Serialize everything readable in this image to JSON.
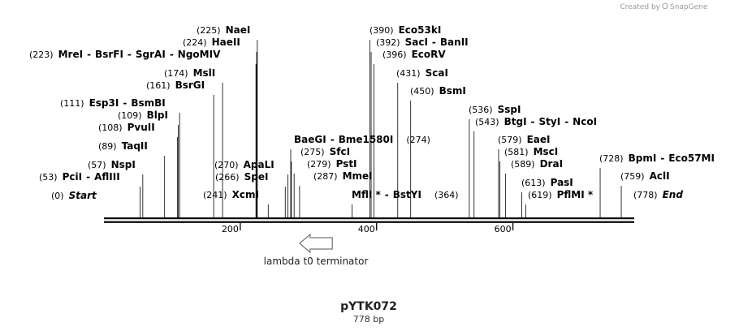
{
  "credit": {
    "prefix": "Created by",
    "brand": "SnapGene"
  },
  "title": "pYTK072",
  "length_label": "778 bp",
  "sequence_length": 778,
  "ticks": [
    {
      "label": "200",
      "value": 200
    },
    {
      "label": "400",
      "value": 400
    },
    {
      "label": "600",
      "value": 600
    }
  ],
  "feature": {
    "name": "lambda t0 terminator",
    "start": 287,
    "end": 335,
    "direction": "reverse"
  },
  "sites": [
    {
      "pos_label": "(0)",
      "names": [
        "Start"
      ],
      "site": 0,
      "italic": true
    },
    {
      "pos_label": "(53)",
      "names": [
        "PciI",
        "AflIII"
      ],
      "site": 53
    },
    {
      "pos_label": "(57)",
      "names": [
        "NspI"
      ],
      "site": 57
    },
    {
      "pos_label": "(89)",
      "names": [
        "TaqII"
      ],
      "site": 89
    },
    {
      "pos_label": "(108)",
      "names": [
        "PvuII"
      ],
      "site": 108
    },
    {
      "pos_label": "(109)",
      "names": [
        "BlpI"
      ],
      "site": 109
    },
    {
      "pos_label": "(111)",
      "names": [
        "Esp3I",
        "BsmBI"
      ],
      "site": 111
    },
    {
      "pos_label": "(161)",
      "names": [
        "BsrGI"
      ],
      "site": 161
    },
    {
      "pos_label": "(174)",
      "names": [
        "MslI"
      ],
      "site": 174
    },
    {
      "pos_label": "(223)",
      "names": [
        "MreI",
        "BsrFI",
        "SgrAI",
        "NgoMIV"
      ],
      "site": 223
    },
    {
      "pos_label": "(224)",
      "names": [
        "HaeII"
      ],
      "site": 224
    },
    {
      "pos_label": "(225)",
      "names": [
        "NaeI"
      ],
      "site": 225
    },
    {
      "pos_label": "(241)",
      "names": [
        "XcmI"
      ],
      "site": 241
    },
    {
      "pos_label": "(266)",
      "names": [
        "SpeI"
      ],
      "site": 266
    },
    {
      "pos_label": "(270)",
      "names": [
        "ApaLI"
      ],
      "site": 270
    },
    {
      "pos_label": "(274)",
      "names": [
        "BaeGI",
        "Bme1580I"
      ],
      "site": 274
    },
    {
      "pos_label": "(275)",
      "names": [
        "SfcI"
      ],
      "site": 275
    },
    {
      "pos_label": "(279)",
      "names": [
        "PstI"
      ],
      "site": 279
    },
    {
      "pos_label": "(287)",
      "names": [
        "MmeI"
      ],
      "site": 287
    },
    {
      "pos_label": "(364)",
      "names": [
        "MflI *",
        "BstYI"
      ],
      "site": 364
    },
    {
      "pos_label": "(390)",
      "names": [
        "Eco53kI"
      ],
      "site": 390
    },
    {
      "pos_label": "(392)",
      "names": [
        "SacI",
        "BanII"
      ],
      "site": 392
    },
    {
      "pos_label": "(396)",
      "names": [
        "EcoRV"
      ],
      "site": 396
    },
    {
      "pos_label": "(431)",
      "names": [
        "ScaI"
      ],
      "site": 431
    },
    {
      "pos_label": "(450)",
      "names": [
        "BsmI"
      ],
      "site": 450
    },
    {
      "pos_label": "(536)",
      "names": [
        "SspI"
      ],
      "site": 536
    },
    {
      "pos_label": "(543)",
      "names": [
        "BtgI",
        "StyI",
        "NcoI"
      ],
      "site": 543
    },
    {
      "pos_label": "(579)",
      "names": [
        "EaeI"
      ],
      "site": 579
    },
    {
      "pos_label": "(581)",
      "names": [
        "MscI"
      ],
      "site": 581
    },
    {
      "pos_label": "(589)",
      "names": [
        "DraI"
      ],
      "site": 589
    },
    {
      "pos_label": "(613)",
      "names": [
        "PasI"
      ],
      "site": 613
    },
    {
      "pos_label": "(619)",
      "names": [
        "PflMI *"
      ],
      "site": 619
    },
    {
      "pos_label": "(728)",
      "names": [
        "BpmI",
        "Eco57MI"
      ],
      "site": 728
    },
    {
      "pos_label": "(759)",
      "names": [
        "AclI"
      ],
      "site": 759
    },
    {
      "pos_label": "(778)",
      "names": [
        "End"
      ],
      "site": 778,
      "italic": true
    }
  ]
}
